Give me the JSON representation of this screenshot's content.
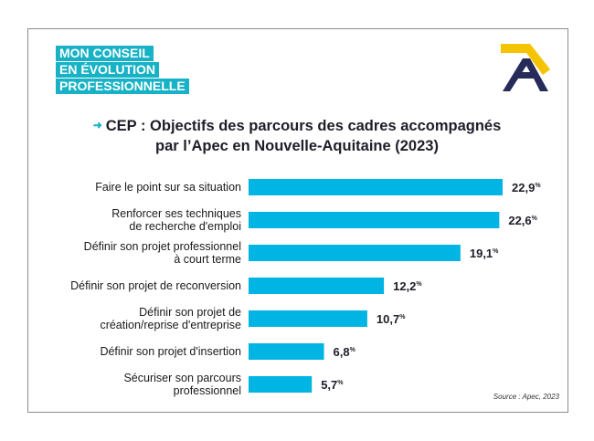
{
  "brand": {
    "lines": [
      "MON CONSEIL",
      "EN ÉVOLUTION",
      "PROFESSIONNELLE"
    ],
    "color": "#17b2c6"
  },
  "logo": {
    "name": "apec-logo",
    "colors": [
      "#f5c400",
      "#262b5a"
    ]
  },
  "chart_data": {
    "type": "bar",
    "orientation": "horizontal",
    "title_line1": "CEP : Objectifs des parcours des cadres accompagnés",
    "title_line2": "par l’Apec en Nouvelle-Aquitaine (2023)",
    "categories": [
      [
        "Faire le point sur sa situation"
      ],
      [
        "Renforcer ses techniques",
        "de recherche d'emploi"
      ],
      [
        "Définir son projet professionnel",
        "à court terme"
      ],
      [
        "Définir son projet de reconversion"
      ],
      [
        "Définir son projet de",
        "création/reprise d'entreprise"
      ],
      [
        "Définir son projet d'insertion"
      ],
      [
        "Sécuriser son parcours",
        "professionnel"
      ]
    ],
    "values": [
      22.9,
      22.6,
      19.1,
      12.2,
      10.7,
      6.8,
      5.7
    ],
    "value_labels": [
      "22,9",
      "22,6",
      "19,1",
      "12,2",
      "10,7",
      "6,8",
      "5,7"
    ],
    "unit": "%",
    "bar_color": "#00b4e3",
    "xlim": [
      0,
      22.9
    ],
    "grid": false,
    "legend": "none"
  },
  "source": "Source : Apec, 2023"
}
